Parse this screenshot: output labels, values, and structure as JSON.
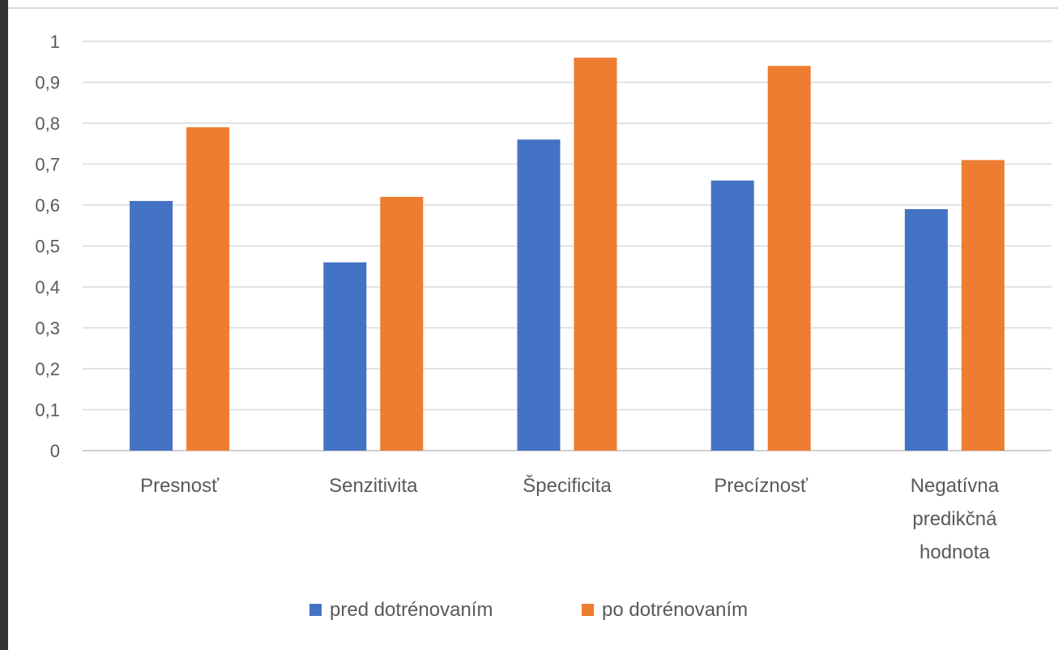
{
  "chart_data": {
    "type": "bar",
    "title": "",
    "xlabel": "",
    "ylabel": "",
    "ylim": [
      0,
      1
    ],
    "y_ticks": [
      "0",
      "0,1",
      "0,2",
      "0,3",
      "0,4",
      "0,5",
      "0,6",
      "0,7",
      "0,8",
      "0,9",
      "1"
    ],
    "grid": true,
    "legend_position": "bottom",
    "categories": [
      [
        "Presnosť"
      ],
      [
        "Senzitivita"
      ],
      [
        "Špecificita"
      ],
      [
        "Precíznosť"
      ],
      [
        "Negatívna",
        "predikčná",
        "hodnota"
      ]
    ],
    "series": [
      {
        "name": "pred dotrénovaním",
        "color": "#4472c4",
        "values": [
          0.61,
          0.46,
          0.76,
          0.66,
          0.59
        ]
      },
      {
        "name": "po dotrénovaním",
        "color": "#ed7d31",
        "values": [
          0.79,
          0.62,
          0.96,
          0.94,
          0.71
        ]
      }
    ]
  }
}
